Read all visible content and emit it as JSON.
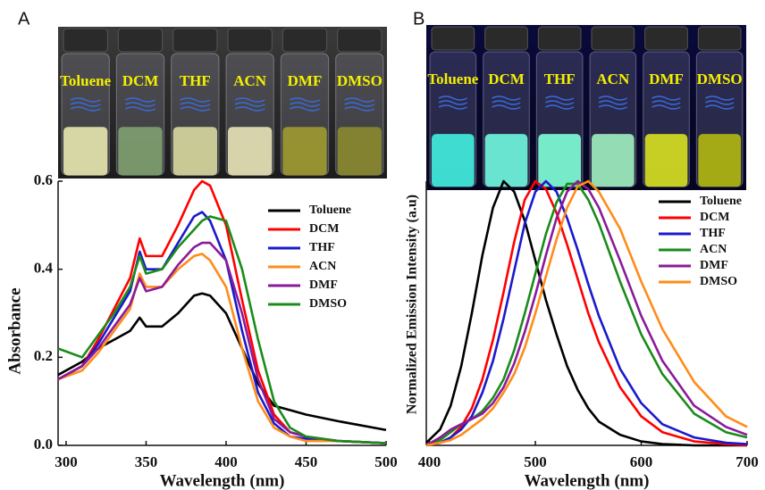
{
  "chart_data": [
    {
      "type": "line",
      "panel": "A",
      "xlabel": "Wavelength (nm)",
      "ylabel": "Absorbance",
      "photo_labels": [
        "Toluene",
        "DCM",
        "THF",
        "ACN",
        "DMF",
        "DMSO"
      ],
      "x": [
        295,
        310,
        320,
        330,
        340,
        346,
        350,
        360,
        370,
        380,
        385,
        390,
        400,
        410,
        420,
        430,
        440,
        450,
        470,
        500
      ],
      "xlim": [
        295,
        500
      ],
      "xticks": [
        300,
        350,
        400,
        450,
        500
      ],
      "ylim": [
        0,
        0.6
      ],
      "yticks": [
        {
          "value": 0,
          "label": "0.0"
        },
        0.2,
        0.4,
        0.6
      ],
      "legend": "upper right",
      "series": [
        {
          "name": "Toluene",
          "color": "#000000",
          "values": [
            0.16,
            0.19,
            0.22,
            0.24,
            0.26,
            0.29,
            0.27,
            0.27,
            0.3,
            0.34,
            0.345,
            0.34,
            0.3,
            0.22,
            0.14,
            0.09,
            0.08,
            0.07,
            0.055,
            0.035
          ]
        },
        {
          "name": "DCM",
          "color": "#ff0000",
          "values": [
            0.15,
            0.18,
            0.24,
            0.31,
            0.38,
            0.47,
            0.43,
            0.43,
            0.5,
            0.58,
            0.6,
            0.59,
            0.5,
            0.33,
            0.17,
            0.07,
            0.03,
            0.02,
            0.01,
            0.005
          ]
        },
        {
          "name": "THF",
          "color": "#1a1acc",
          "values": [
            0.15,
            0.18,
            0.23,
            0.29,
            0.35,
            0.44,
            0.4,
            0.4,
            0.46,
            0.52,
            0.53,
            0.51,
            0.42,
            0.26,
            0.12,
            0.05,
            0.02,
            0.015,
            0.01,
            0.005
          ]
        },
        {
          "name": "ACN",
          "color": "#ff8c1a",
          "values": [
            0.15,
            0.17,
            0.21,
            0.26,
            0.31,
            0.39,
            0.36,
            0.36,
            0.4,
            0.43,
            0.435,
            0.42,
            0.36,
            0.22,
            0.1,
            0.04,
            0.02,
            0.01,
            0.01,
            0.005
          ]
        },
        {
          "name": "DMF",
          "color": "#8b1a9b",
          "values": [
            0.15,
            0.18,
            0.22,
            0.27,
            0.32,
            0.38,
            0.35,
            0.36,
            0.41,
            0.45,
            0.46,
            0.46,
            0.42,
            0.3,
            0.15,
            0.06,
            0.03,
            0.02,
            0.01,
            0.005
          ]
        },
        {
          "name": "DMSO",
          "color": "#1a8c1a",
          "values": [
            0.22,
            0.2,
            0.25,
            0.3,
            0.36,
            0.43,
            0.39,
            0.4,
            0.45,
            0.49,
            0.51,
            0.52,
            0.51,
            0.4,
            0.24,
            0.1,
            0.04,
            0.02,
            0.01,
            0.005
          ]
        }
      ]
    },
    {
      "type": "line",
      "panel": "B",
      "xlabel": "Wavelength (nm)",
      "ylabel": "Normalized Emission Intensity (a.u)",
      "photo_labels": [
        "Toluene",
        "DCM",
        "THF",
        "ACN",
        "DMF",
        "DMSO"
      ],
      "x": [
        397,
        410,
        420,
        430,
        440,
        450,
        460,
        470,
        480,
        490,
        500,
        510,
        520,
        530,
        540,
        550,
        560,
        580,
        600,
        620,
        650,
        680,
        700
      ],
      "xlim": [
        397,
        700
      ],
      "xticks": [
        400,
        500,
        600,
        700
      ],
      "ylim": [
        0,
        1
      ],
      "legend": "upper right",
      "series": [
        {
          "name": "Toluene",
          "color": "#000000",
          "values": [
            0.01,
            0.06,
            0.15,
            0.3,
            0.5,
            0.72,
            0.9,
            1.0,
            0.96,
            0.85,
            0.7,
            0.55,
            0.42,
            0.3,
            0.21,
            0.14,
            0.09,
            0.04,
            0.015,
            0.005,
            0,
            0,
            0
          ]
        },
        {
          "name": "DCM",
          "color": "#ff0000",
          "values": [
            0,
            0.01,
            0.03,
            0.07,
            0.14,
            0.25,
            0.4,
            0.58,
            0.77,
            0.93,
            1.0,
            0.97,
            0.88,
            0.76,
            0.63,
            0.5,
            0.39,
            0.22,
            0.11,
            0.05,
            0.015,
            0.005,
            0
          ]
        },
        {
          "name": "THF",
          "color": "#1a1acc",
          "values": [
            0,
            0.01,
            0.03,
            0.06,
            0.11,
            0.2,
            0.32,
            0.48,
            0.66,
            0.84,
            0.96,
            1.0,
            0.96,
            0.86,
            0.74,
            0.61,
            0.49,
            0.29,
            0.16,
            0.08,
            0.03,
            0.01,
            0.005
          ]
        },
        {
          "name": "ACN",
          "color": "#1a8c1a",
          "values": [
            0,
            0.02,
            0.05,
            0.08,
            0.1,
            0.13,
            0.18,
            0.25,
            0.36,
            0.5,
            0.65,
            0.8,
            0.92,
            0.99,
            0.99,
            0.93,
            0.84,
            0.62,
            0.42,
            0.27,
            0.12,
            0.05,
            0.03
          ]
        },
        {
          "name": "DMF",
          "color": "#8b1a9b",
          "values": [
            0,
            0.03,
            0.06,
            0.08,
            0.1,
            0.12,
            0.16,
            0.22,
            0.31,
            0.43,
            0.57,
            0.72,
            0.86,
            0.96,
            1.0,
            0.97,
            0.9,
            0.7,
            0.49,
            0.32,
            0.15,
            0.07,
            0.04
          ]
        },
        {
          "name": "DMSO",
          "color": "#ff8c1a",
          "values": [
            0,
            0.01,
            0.02,
            0.04,
            0.07,
            0.1,
            0.14,
            0.2,
            0.27,
            0.37,
            0.5,
            0.64,
            0.78,
            0.9,
            0.98,
            1.0,
            0.96,
            0.82,
            0.62,
            0.44,
            0.24,
            0.11,
            0.07
          ]
        }
      ]
    }
  ]
}
